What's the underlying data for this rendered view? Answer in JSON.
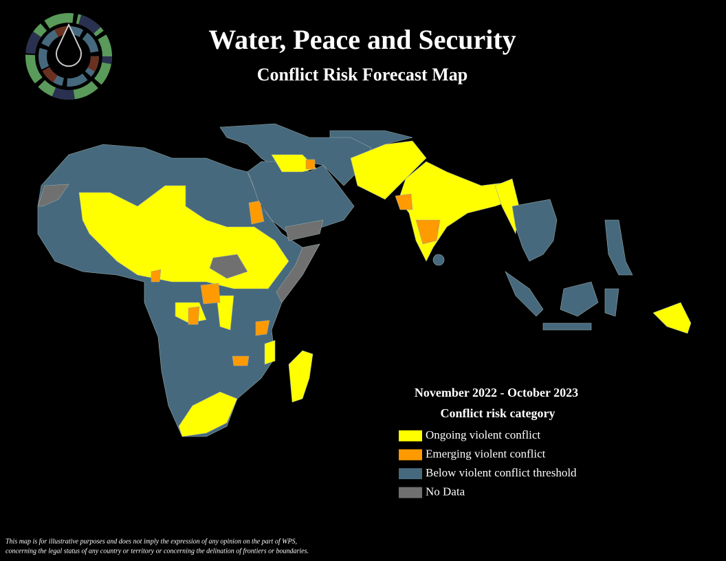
{
  "header": {
    "title": "Water, Peace and Security",
    "subtitle": "Conflict Risk Forecast Map"
  },
  "legend": {
    "period": "November 2022 - October 2023",
    "title": "Conflict risk category",
    "items": [
      {
        "label": "Ongoing violent conflict",
        "color": "#ffff00"
      },
      {
        "label": "Emerging violent conflict",
        "color": "#ff9a00"
      },
      {
        "label": "Below violent conflict threshold",
        "color": "#46697d"
      },
      {
        "label": "No Data",
        "color": "#707070"
      }
    ]
  },
  "disclaimer": [
    "This map is for illustrative purposes and does not imply the expression of any opinion on the part of WPS,",
    "concerning the legal status of any country or territory or concerning the delination of frontiers or boundaries."
  ]
}
